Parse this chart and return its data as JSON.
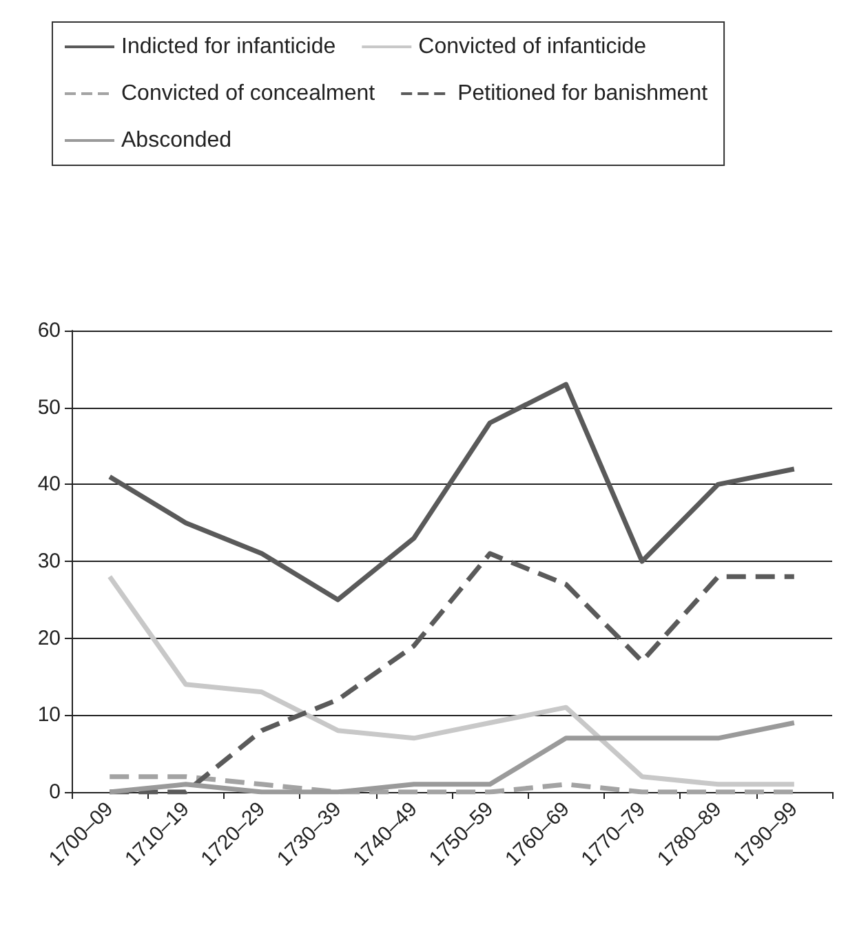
{
  "chart_data": {
    "type": "line",
    "categories": [
      "1700–09",
      "1710–19",
      "1720–29",
      "1730–39",
      "1740–49",
      "1750–59",
      "1760–69",
      "1770–79",
      "1780–89",
      "1790–99"
    ],
    "series": [
      {
        "name": "Indicted for infanticide",
        "color": "#5a5a5a",
        "line_style": "solid",
        "values": [
          41,
          35,
          31,
          25,
          33,
          48,
          53,
          30,
          40,
          42
        ]
      },
      {
        "name": "Convicted of infanticide",
        "color": "#c8c8c8",
        "line_style": "solid",
        "values": [
          28,
          14,
          13,
          8,
          7,
          9,
          11,
          2,
          1,
          1
        ]
      },
      {
        "name": "Convicted of concealment",
        "color": "#a3a3a3",
        "line_style": "dashed",
        "values": [
          2,
          2,
          1,
          0,
          0,
          0,
          1,
          0,
          0,
          0
        ]
      },
      {
        "name": "Petitioned for banishment",
        "color": "#5a5a5a",
        "line_style": "dashed",
        "values": [
          0,
          0,
          8,
          12,
          19,
          31,
          27,
          17,
          28,
          28
        ]
      },
      {
        "name": "Absconded",
        "color": "#9a9a9a",
        "line_style": "solid",
        "values": [
          0,
          1,
          0,
          0,
          1,
          1,
          7,
          7,
          7,
          9
        ]
      }
    ],
    "ylim": [
      0,
      60
    ],
    "yticks": [
      0,
      10,
      20,
      30,
      40,
      50,
      60
    ],
    "grid": "y",
    "legend": "top",
    "marker": "none"
  }
}
